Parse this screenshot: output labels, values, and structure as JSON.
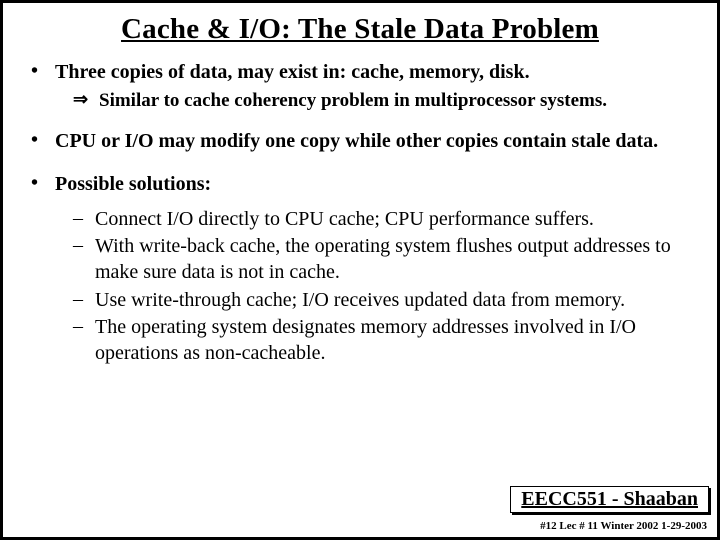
{
  "title": "Cache & I/O: The Stale Data Problem",
  "bullets": {
    "b1": "Three copies of data, may exist in:  cache, memory, disk.",
    "arrow": "Similar to cache coherency problem in multiprocessor systems.",
    "b2": "CPU or I/O may modify one copy while other copies contain stale data.",
    "b3": "Possible solutions:",
    "s1": "Connect I/O directly to CPU cache; CPU performance suffers.",
    "s2": "With write-back cache, the operating system flushes output addresses to make sure data is not in cache.",
    "s3": "Use write-through cache; I/O receives updated data from memory.",
    "s4": "The operating system designates memory addresses involved in I/O operations as non-cacheable."
  },
  "footer": {
    "course": "EECC551 - Shaaban",
    "line": "#12   Lec # 11  Winter 2002  1-29-2003"
  },
  "style": {
    "title_fontsize": 29,
    "body_fontsize": 20,
    "footer_fontsize": 20,
    "footerline_fontsize": 11,
    "border_color": "#000000",
    "background": "#ffffff",
    "text_color": "#000000"
  }
}
